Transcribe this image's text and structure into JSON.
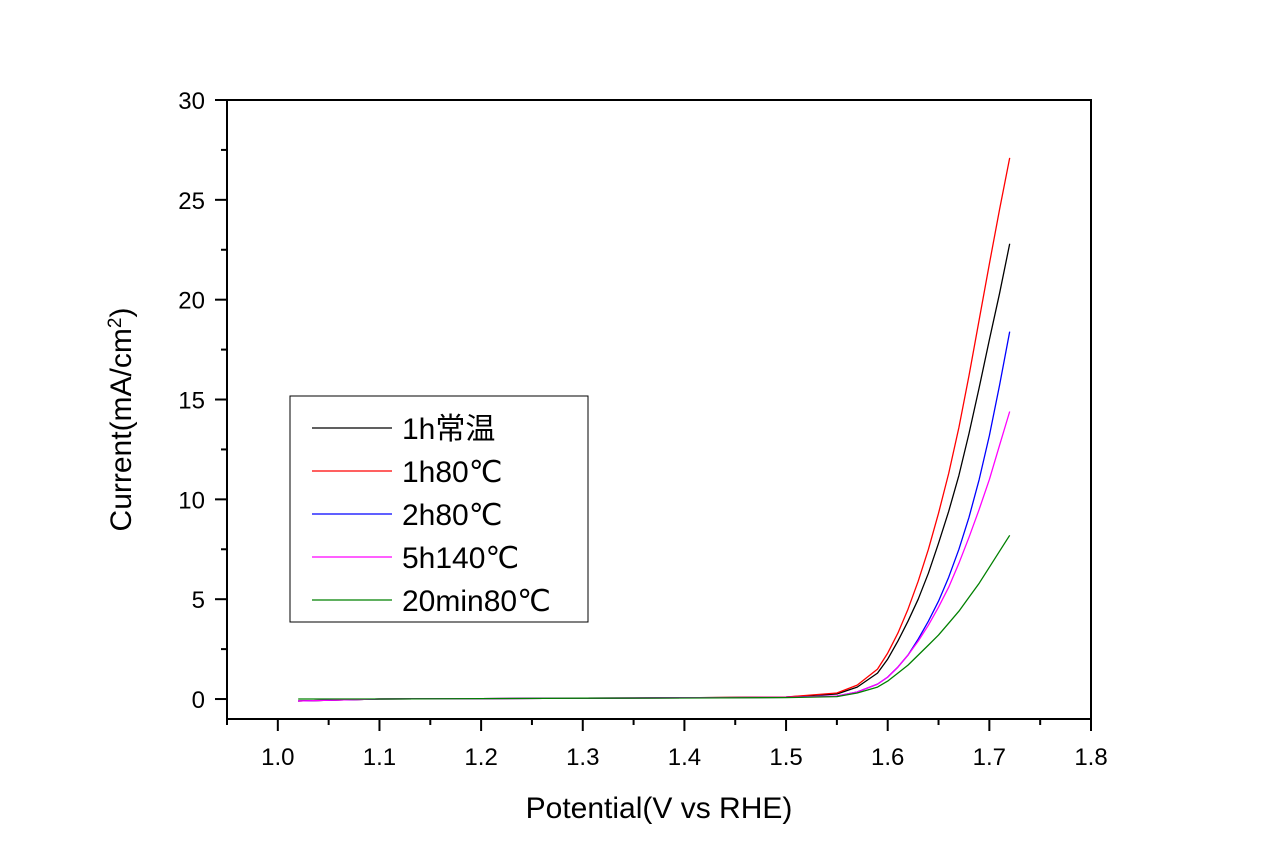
{
  "chart_data": {
    "type": "line",
    "title": "",
    "xlabel": "Potential(V vs RHE)",
    "ylabel_main": "Current(mA/cm",
    "ylabel_sup": "2",
    "ylabel_close": ")",
    "xlim": [
      0.95,
      1.8
    ],
    "ylim": [
      -1,
      30
    ],
    "x_ticks": [
      1.0,
      1.1,
      1.2,
      1.3,
      1.4,
      1.5,
      1.6,
      1.7,
      1.8
    ],
    "x_tick_labels": [
      "1.0",
      "1.1",
      "1.2",
      "1.3",
      "1.4",
      "1.5",
      "1.6",
      "1.7",
      "1.8"
    ],
    "y_ticks": [
      0,
      5,
      10,
      15,
      20,
      25,
      30
    ],
    "y_tick_labels": [
      "0",
      "5",
      "10",
      "15",
      "20",
      "25",
      "30"
    ],
    "grid": false,
    "legend_position": "center-left",
    "series": [
      {
        "name": "1h常温",
        "color": "#000000",
        "x": [
          1.02,
          1.1,
          1.2,
          1.3,
          1.4,
          1.5,
          1.55,
          1.57,
          1.59,
          1.6,
          1.61,
          1.62,
          1.63,
          1.64,
          1.65,
          1.66,
          1.67,
          1.68,
          1.69,
          1.7,
          1.71,
          1.72
        ],
        "y": [
          -0.1,
          0.0,
          0.02,
          0.04,
          0.06,
          0.1,
          0.25,
          0.6,
          1.3,
          2.0,
          2.9,
          3.9,
          5.0,
          6.3,
          7.8,
          9.4,
          11.2,
          13.3,
          15.6,
          18.0,
          20.3,
          22.8
        ]
      },
      {
        "name": "1h80℃",
        "color": "#ff0000",
        "x": [
          1.02,
          1.1,
          1.2,
          1.3,
          1.4,
          1.5,
          1.55,
          1.57,
          1.59,
          1.6,
          1.61,
          1.62,
          1.63,
          1.64,
          1.65,
          1.66,
          1.67,
          1.68,
          1.69,
          1.7,
          1.71,
          1.72
        ],
        "y": [
          -0.1,
          0.0,
          0.02,
          0.04,
          0.06,
          0.1,
          0.3,
          0.7,
          1.5,
          2.3,
          3.3,
          4.5,
          5.9,
          7.5,
          9.3,
          11.3,
          13.6,
          16.2,
          19.0,
          21.8,
          24.5,
          27.1
        ]
      },
      {
        "name": "2h80℃",
        "color": "#0000ff",
        "x": [
          1.02,
          1.1,
          1.2,
          1.3,
          1.4,
          1.5,
          1.55,
          1.57,
          1.59,
          1.6,
          1.61,
          1.62,
          1.63,
          1.64,
          1.65,
          1.66,
          1.67,
          1.68,
          1.69,
          1.7,
          1.71,
          1.72
        ],
        "y": [
          -0.1,
          0.0,
          0.02,
          0.04,
          0.06,
          0.08,
          0.15,
          0.35,
          0.75,
          1.1,
          1.6,
          2.2,
          3.0,
          3.9,
          4.9,
          6.1,
          7.5,
          9.1,
          11.0,
          13.2,
          15.7,
          18.4
        ]
      },
      {
        "name": "5h140℃",
        "color": "#ff00ff",
        "x": [
          1.02,
          1.1,
          1.2,
          1.3,
          1.4,
          1.5,
          1.55,
          1.57,
          1.59,
          1.6,
          1.61,
          1.62,
          1.63,
          1.64,
          1.65,
          1.66,
          1.67,
          1.68,
          1.69,
          1.7,
          1.71,
          1.72
        ],
        "y": [
          -0.1,
          0.0,
          0.02,
          0.04,
          0.06,
          0.08,
          0.15,
          0.35,
          0.75,
          1.1,
          1.6,
          2.2,
          2.9,
          3.7,
          4.6,
          5.6,
          6.8,
          8.1,
          9.5,
          11.0,
          12.7,
          14.4
        ]
      },
      {
        "name": "20min80℃",
        "color": "#008000",
        "x": [
          1.02,
          1.1,
          1.2,
          1.3,
          1.4,
          1.5,
          1.55,
          1.57,
          1.59,
          1.6,
          1.61,
          1.62,
          1.63,
          1.64,
          1.65,
          1.66,
          1.67,
          1.68,
          1.69,
          1.7,
          1.71,
          1.72
        ],
        "y": [
          0.0,
          0.0,
          0.02,
          0.04,
          0.05,
          0.07,
          0.12,
          0.3,
          0.6,
          0.9,
          1.3,
          1.7,
          2.2,
          2.7,
          3.2,
          3.8,
          4.4,
          5.1,
          5.8,
          6.6,
          7.4,
          8.2
        ]
      }
    ]
  }
}
